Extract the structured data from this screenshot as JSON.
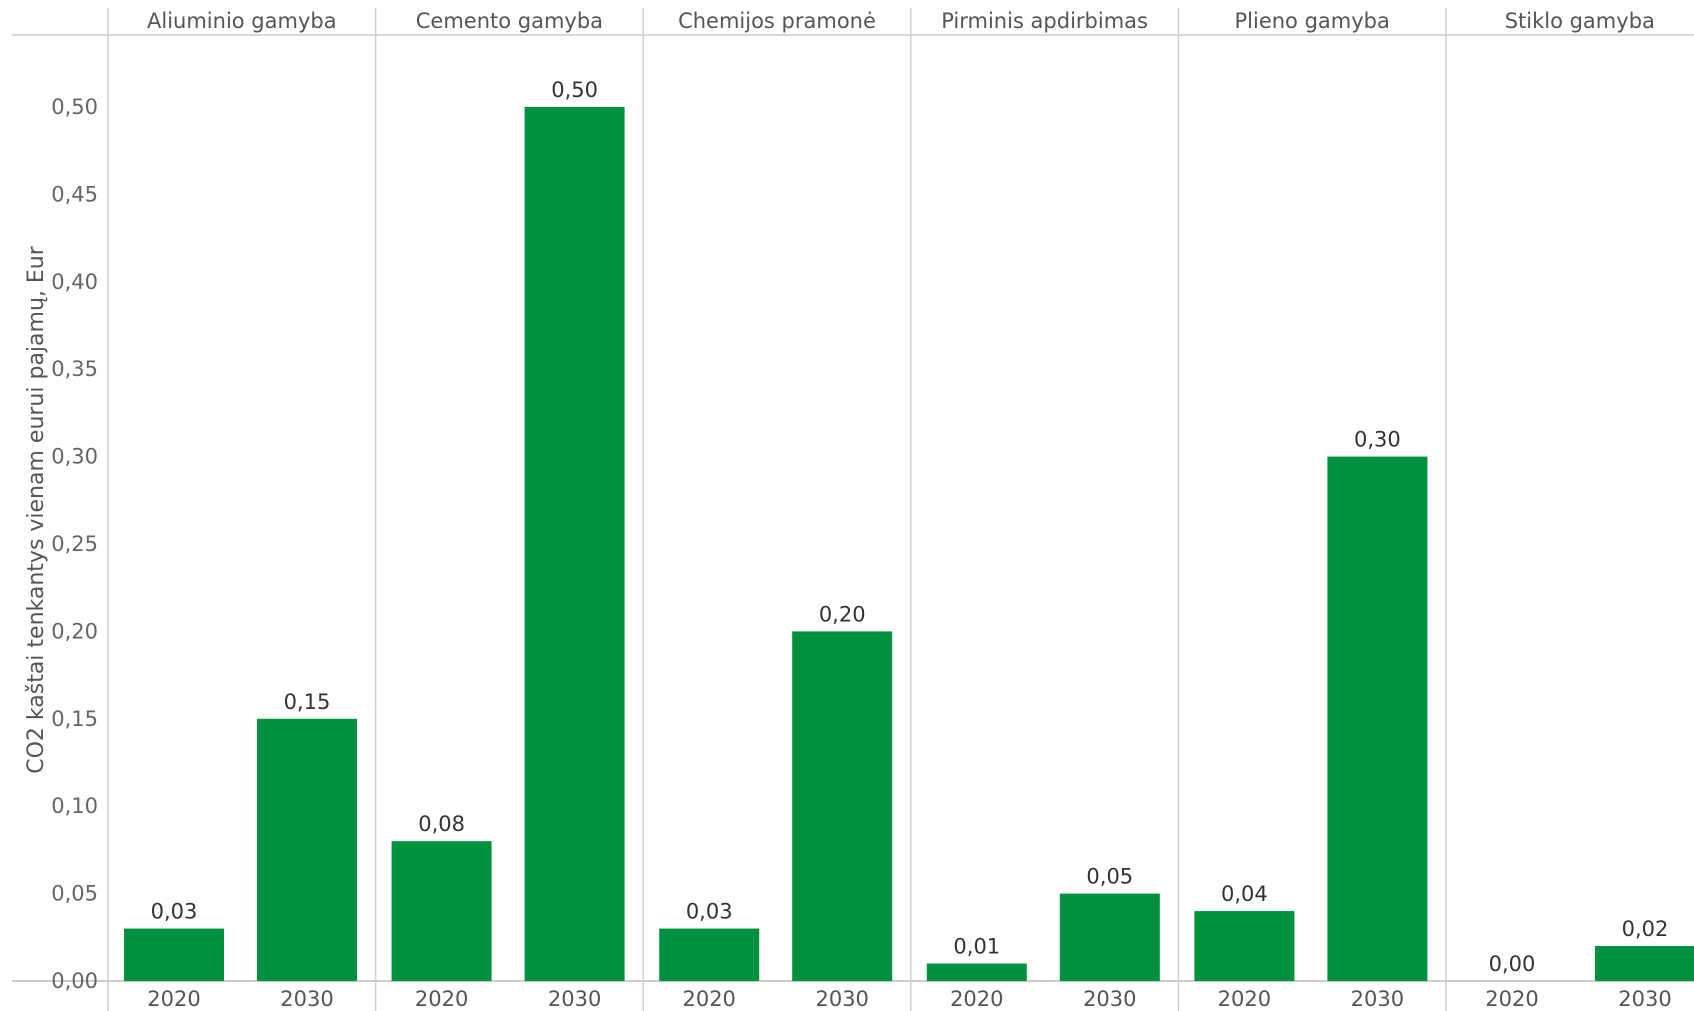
{
  "chart_data": {
    "type": "bar",
    "ylabel": "CO2 kaštai tenkantys vienam eurui pajamų, Eur",
    "ylim": [
      0,
      0.5
    ],
    "y_ticks": [
      "0,00",
      "0,05",
      "0,10",
      "0,15",
      "0,20",
      "0,25",
      "0,30",
      "0,35",
      "0,40",
      "0,45",
      "0,50"
    ],
    "bar_color": "#00913f",
    "grid": false,
    "panels": [
      {
        "name": "Aliuminio gamyba",
        "categories": [
          "2020",
          "2030"
        ],
        "values": [
          0.03,
          0.15
        ],
        "labels": [
          "0,03",
          "0,15"
        ]
      },
      {
        "name": "Cemento gamyba",
        "categories": [
          "2020",
          "2030"
        ],
        "values": [
          0.08,
          0.5
        ],
        "labels": [
          "0,08",
          "0,50"
        ]
      },
      {
        "name": "Chemijos pramonė",
        "categories": [
          "2020",
          "2030"
        ],
        "values": [
          0.03,
          0.2
        ],
        "labels": [
          "0,03",
          "0,20"
        ]
      },
      {
        "name": "Pirminis apdirbimas",
        "categories": [
          "2020",
          "2030"
        ],
        "values": [
          0.01,
          0.05
        ],
        "labels": [
          "0,01",
          "0,05"
        ]
      },
      {
        "name": "Plieno gamyba",
        "categories": [
          "2020",
          "2030"
        ],
        "values": [
          0.04,
          0.3
        ],
        "labels": [
          "0,04",
          "0,30"
        ]
      },
      {
        "name": "Stiklo gamyba",
        "categories": [
          "2020",
          "2030"
        ],
        "values": [
          0.0,
          0.02
        ],
        "labels": [
          "0,00",
          "0,02"
        ]
      }
    ]
  }
}
